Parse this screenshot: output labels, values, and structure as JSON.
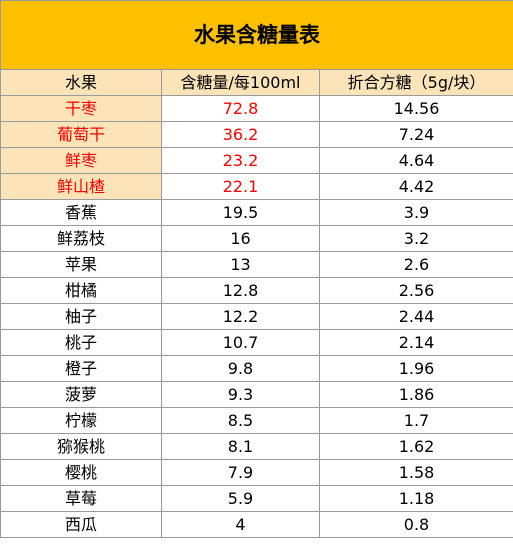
{
  "title": "水果含糖量表",
  "columns": [
    "水果",
    "含糖量/每100ml",
    "折合方糖（5g/块）"
  ],
  "highlight_color": "#ff0000",
  "header_fill": "#FCE4B8",
  "title_fill": "#FFC000",
  "rows": [
    {
      "name": "干枣",
      "sugar": "72.8",
      "cubes": "14.56",
      "highlight": true
    },
    {
      "name": "葡萄干",
      "sugar": "36.2",
      "cubes": "7.24",
      "highlight": true
    },
    {
      "name": "鲜枣",
      "sugar": "23.2",
      "cubes": "4.64",
      "highlight": true
    },
    {
      "name": "鲜山楂",
      "sugar": "22.1",
      "cubes": "4.42",
      "highlight": true
    },
    {
      "name": "香蕉",
      "sugar": "19.5",
      "cubes": "3.9",
      "highlight": false
    },
    {
      "name": "鲜荔枝",
      "sugar": "16",
      "cubes": "3.2",
      "highlight": false
    },
    {
      "name": "苹果",
      "sugar": "13",
      "cubes": "2.6",
      "highlight": false
    },
    {
      "name": "柑橘",
      "sugar": "12.8",
      "cubes": "2.56",
      "highlight": false
    },
    {
      "name": "柚子",
      "sugar": "12.2",
      "cubes": "2.44",
      "highlight": false
    },
    {
      "name": "桃子",
      "sugar": "10.7",
      "cubes": "2.14",
      "highlight": false
    },
    {
      "name": "橙子",
      "sugar": "9.8",
      "cubes": "1.96",
      "highlight": false
    },
    {
      "name": "菠萝",
      "sugar": "9.3",
      "cubes": "1.86",
      "highlight": false
    },
    {
      "name": "柠檬",
      "sugar": "8.5",
      "cubes": "1.7",
      "highlight": false
    },
    {
      "name": "猕猴桃",
      "sugar": "8.1",
      "cubes": "1.62",
      "highlight": false
    },
    {
      "name": "樱桃",
      "sugar": "7.9",
      "cubes": "1.58",
      "highlight": false
    },
    {
      "name": "草莓",
      "sugar": "5.9",
      "cubes": "1.18",
      "highlight": false
    },
    {
      "name": "西瓜",
      "sugar": "4",
      "cubes": "0.8",
      "highlight": false
    }
  ]
}
